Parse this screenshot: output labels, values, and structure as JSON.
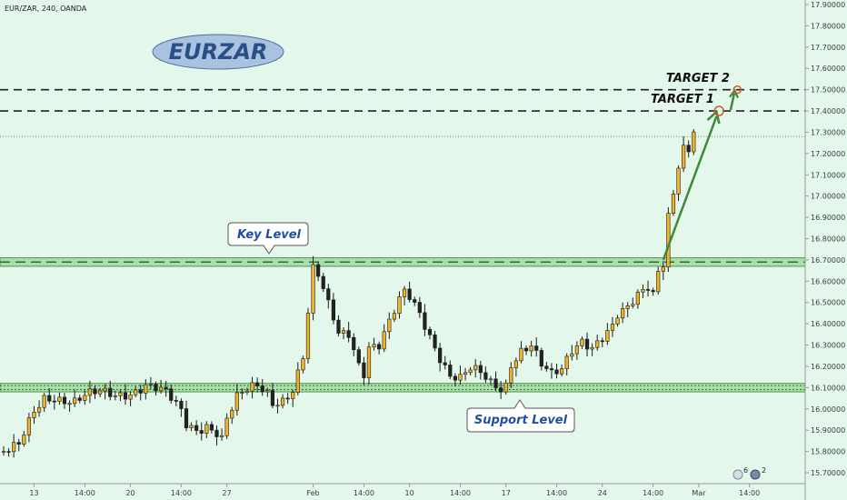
{
  "header": {
    "symbol_line": "EUR/ZAR, 240, OANDA"
  },
  "colors": {
    "background": "#e3f7ea",
    "zone_fill": "#8fd08a",
    "zone_edge": "#4a9a4a",
    "up": "#f0b428",
    "down": "#222222",
    "arrow": "#3d8a3d",
    "label_text": "#1e4fa0"
  },
  "chart_data": {
    "type": "candlestick",
    "title": "EURZAR",
    "ylim": [
      15.65,
      17.92
    ],
    "yticks": [
      "15.70000",
      "15.80000",
      "15.90000",
      "16.00000",
      "16.10000",
      "16.20000",
      "16.30000",
      "16.40000",
      "16.50000",
      "16.60000",
      "16.70000",
      "16.80000",
      "16.90000",
      "17.00000",
      "17.10000",
      "17.20000",
      "17.30000",
      "17.40000",
      "17.50000",
      "17.60000",
      "17.70000",
      "17.80000",
      "17.90000"
    ],
    "xticks": [
      "13",
      "14:00",
      "20",
      "14:00",
      "27",
      "Feb",
      "14:00",
      "10",
      "14:00",
      "17",
      "14:00",
      "24",
      "14:00",
      "Mar",
      "14:00"
    ],
    "xtick_index": [
      6,
      16,
      25,
      35,
      44,
      61,
      71,
      80,
      90,
      99,
      109,
      118,
      128,
      137,
      147
    ],
    "price_path": [
      [
        0,
        15.8
      ],
      [
        3,
        15.82
      ],
      [
        6,
        15.98
      ],
      [
        8,
        16.05
      ],
      [
        10,
        16.06
      ],
      [
        14,
        16.04
      ],
      [
        16,
        16.06
      ],
      [
        19,
        16.07
      ],
      [
        22,
        16.06
      ],
      [
        25,
        16.08
      ],
      [
        28,
        16.12
      ],
      [
        30,
        16.1
      ],
      [
        32,
        16.07
      ],
      [
        35,
        15.98
      ],
      [
        36,
        15.92
      ],
      [
        38,
        15.9
      ],
      [
        40,
        15.93
      ],
      [
        42,
        15.9
      ],
      [
        43,
        15.87
      ],
      [
        44,
        15.96
      ],
      [
        46,
        16.05
      ],
      [
        48,
        16.08
      ],
      [
        50,
        16.1
      ],
      [
        52,
        16.07
      ],
      [
        53,
        16.03
      ],
      [
        55,
        16.05
      ],
      [
        57,
        16.1
      ],
      [
        59,
        16.25
      ],
      [
        60,
        16.45
      ],
      [
        61,
        16.65
      ],
      [
        62,
        16.62
      ],
      [
        64,
        16.48
      ],
      [
        65,
        16.42
      ],
      [
        66,
        16.35
      ],
      [
        68,
        16.36
      ],
      [
        70,
        16.22
      ],
      [
        71,
        16.18
      ],
      [
        72,
        16.3
      ],
      [
        74,
        16.3
      ],
      [
        76,
        16.4
      ],
      [
        78,
        16.5
      ],
      [
        79,
        16.54
      ],
      [
        80,
        16.52
      ],
      [
        82,
        16.45
      ],
      [
        84,
        16.35
      ],
      [
        86,
        16.25
      ],
      [
        88,
        16.16
      ],
      [
        90,
        16.14
      ],
      [
        92,
        16.18
      ],
      [
        94,
        16.16
      ],
      [
        96,
        16.12
      ],
      [
        98,
        16.1
      ],
      [
        99,
        16.12
      ],
      [
        100,
        16.22
      ],
      [
        102,
        16.28
      ],
      [
        104,
        16.3
      ],
      [
        106,
        16.2
      ],
      [
        108,
        16.15
      ],
      [
        110,
        16.18
      ],
      [
        112,
        16.28
      ],
      [
        114,
        16.33
      ],
      [
        116,
        16.3
      ],
      [
        118,
        16.34
      ],
      [
        120,
        16.38
      ],
      [
        121,
        16.43
      ],
      [
        123,
        16.46
      ],
      [
        125,
        16.53
      ],
      [
        127,
        16.58
      ],
      [
        128,
        16.55
      ],
      [
        129,
        16.66
      ],
      [
        130,
        16.7
      ],
      [
        131,
        16.92
      ],
      [
        132,
        17.02
      ],
      [
        133,
        17.15
      ],
      [
        134,
        17.22
      ],
      [
        135,
        17.2
      ],
      [
        136,
        17.3
      ]
    ],
    "zones": [
      {
        "low": 16.67,
        "high": 16.71,
        "label": "Key Level"
      },
      {
        "low": 16.08,
        "high": 16.12,
        "label": "Support Level"
      }
    ],
    "target_lines": [
      {
        "label": "TARGET 1",
        "value": 17.4
      },
      {
        "label": "TARGET 2",
        "value": 17.5
      }
    ],
    "current_price": 17.28,
    "annotations": {
      "title_badge": "EURZAR",
      "key_level": "Key Level",
      "support_level": "Support Level",
      "target_1": "TARGET 1",
      "target_2": "TARGET 2"
    },
    "grid": false
  },
  "footer": {
    "indicator_1_count": "6",
    "indicator_2_count": "2"
  }
}
